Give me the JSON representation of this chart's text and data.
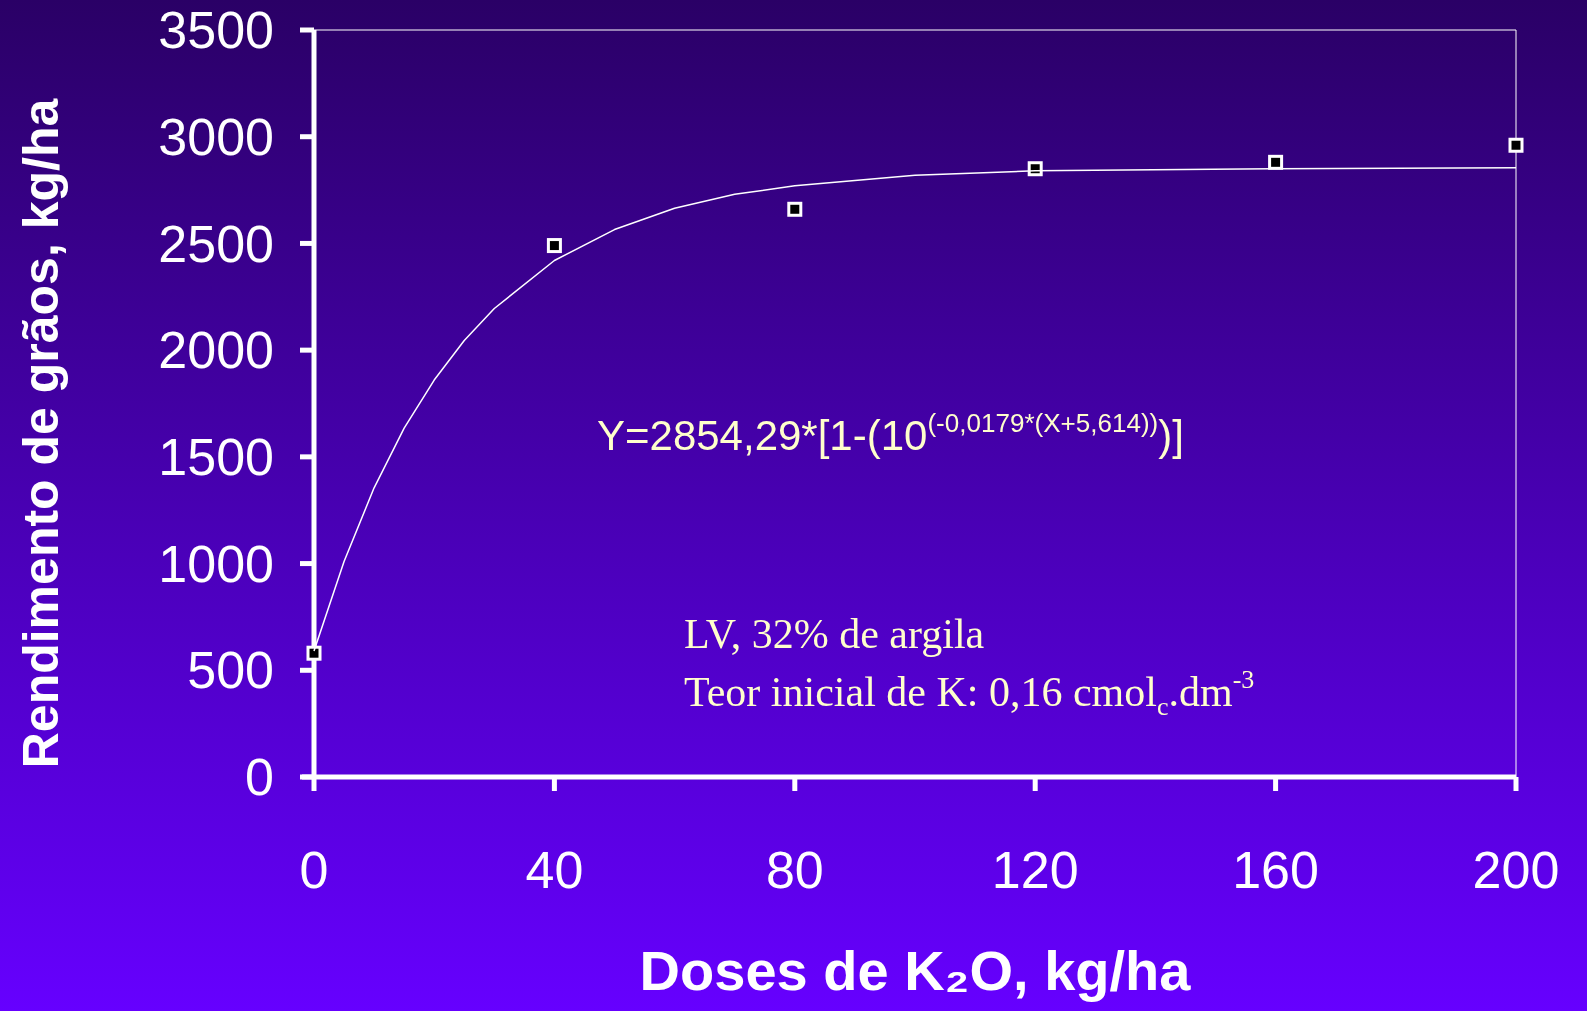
{
  "chart_data": {
    "type": "scatter",
    "xlabel": "Doses de K₂O, kg/ha",
    "ylabel": "Rendimento de grãos, kg/ha",
    "xlim": [
      0,
      200
    ],
    "xticks": [
      0,
      40,
      80,
      120,
      160,
      200
    ],
    "ylim": [
      0,
      3500
    ],
    "yticks": [
      0,
      500,
      1000,
      1500,
      2000,
      2500,
      3000,
      3500
    ],
    "grid": false,
    "series": [
      {
        "color": "#ffffff",
        "marker": "square",
        "x": [
          0,
          40,
          80,
          120,
          160,
          200
        ],
        "values": [
          580,
          2490,
          2660,
          2850,
          2880,
          2960
        ]
      },
      {
        "type": "line",
        "color": "#ffffff",
        "marker": "none",
        "x": [
          0,
          5,
          10,
          15,
          20,
          25,
          30,
          40,
          50,
          60,
          70,
          80,
          100,
          120,
          160,
          200
        ],
        "values": [
          590,
          1010,
          1355,
          1635,
          1860,
          2045,
          2195,
          2420,
          2565,
          2665,
          2730,
          2770,
          2820,
          2840,
          2850,
          2855
        ]
      }
    ],
    "annotations": [
      "Y=2854,29*[1-(10$^{(-0,0179*(X+5,614))}$)]",
      "LV, 32% de argila",
      "Teor inicial de K: 0,16 cmol$_{c}$.dm$^{-3}$"
    ]
  }
}
